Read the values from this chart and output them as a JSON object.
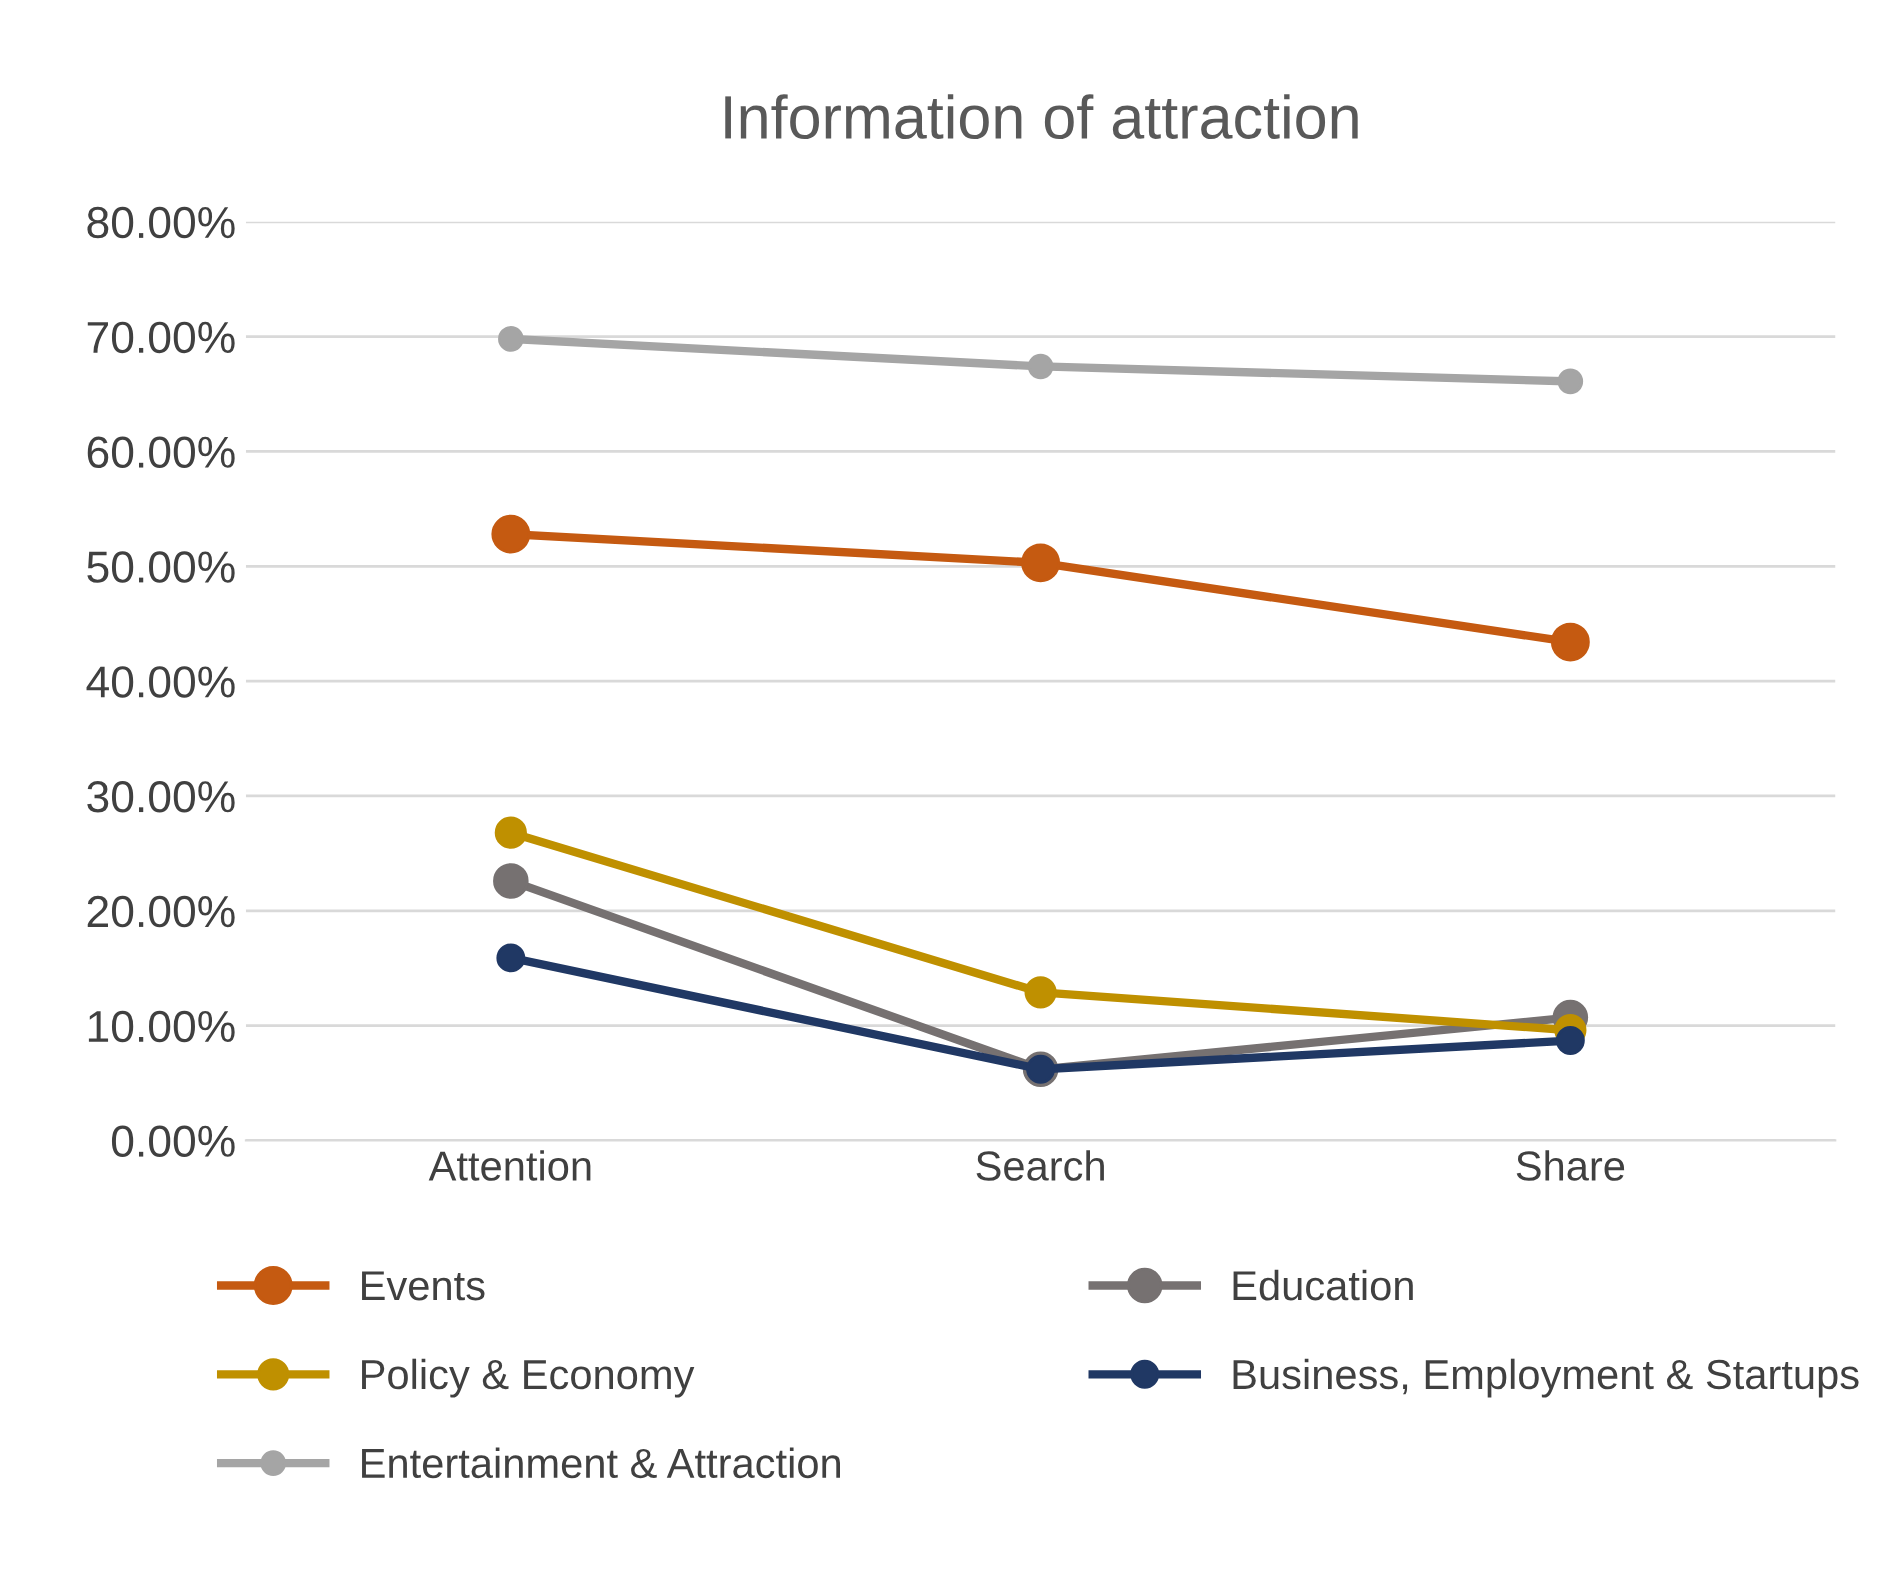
{
  "chart_data": {
    "type": "line",
    "title": "Information of attraction",
    "categories": [
      "Attention",
      "Search",
      "Share"
    ],
    "series": [
      {
        "name": "Events",
        "color": "#c55a11",
        "values": [
          0.528,
          0.503,
          0.434
        ]
      },
      {
        "name": "Education",
        "color": "#767171",
        "values": [
          0.226,
          0.062,
          0.107
        ]
      },
      {
        "name": "Policy & Economy",
        "color": "#bf9000",
        "values": [
          0.268,
          0.129,
          0.096
        ]
      },
      {
        "name": "Business, Employment & Startups",
        "color": "#203864",
        "values": [
          0.159,
          0.062,
          0.087
        ]
      },
      {
        "name": "Entertainment & Attraction",
        "color": "#a5a5a5",
        "values": [
          0.698,
          0.674,
          0.661
        ]
      }
    ],
    "ylim": [
      0,
      0.8
    ],
    "yticks": [
      {
        "value": 0,
        "label": "0.00%"
      },
      {
        "value": 0.1,
        "label": "10.00%"
      },
      {
        "value": 0.2,
        "label": "20.00%"
      },
      {
        "value": 0.3,
        "label": "30.00%"
      },
      {
        "value": 0.4,
        "label": "40.00%"
      },
      {
        "value": 0.5,
        "label": "50.00%"
      },
      {
        "value": 0.6,
        "label": "60.00%"
      },
      {
        "value": 0.7,
        "label": "70.00%"
      },
      {
        "value": 0.8,
        "label": "80.00%"
      }
    ],
    "grid": "y",
    "legend": "bottom",
    "marker": "circle",
    "line_style": "solid"
  }
}
